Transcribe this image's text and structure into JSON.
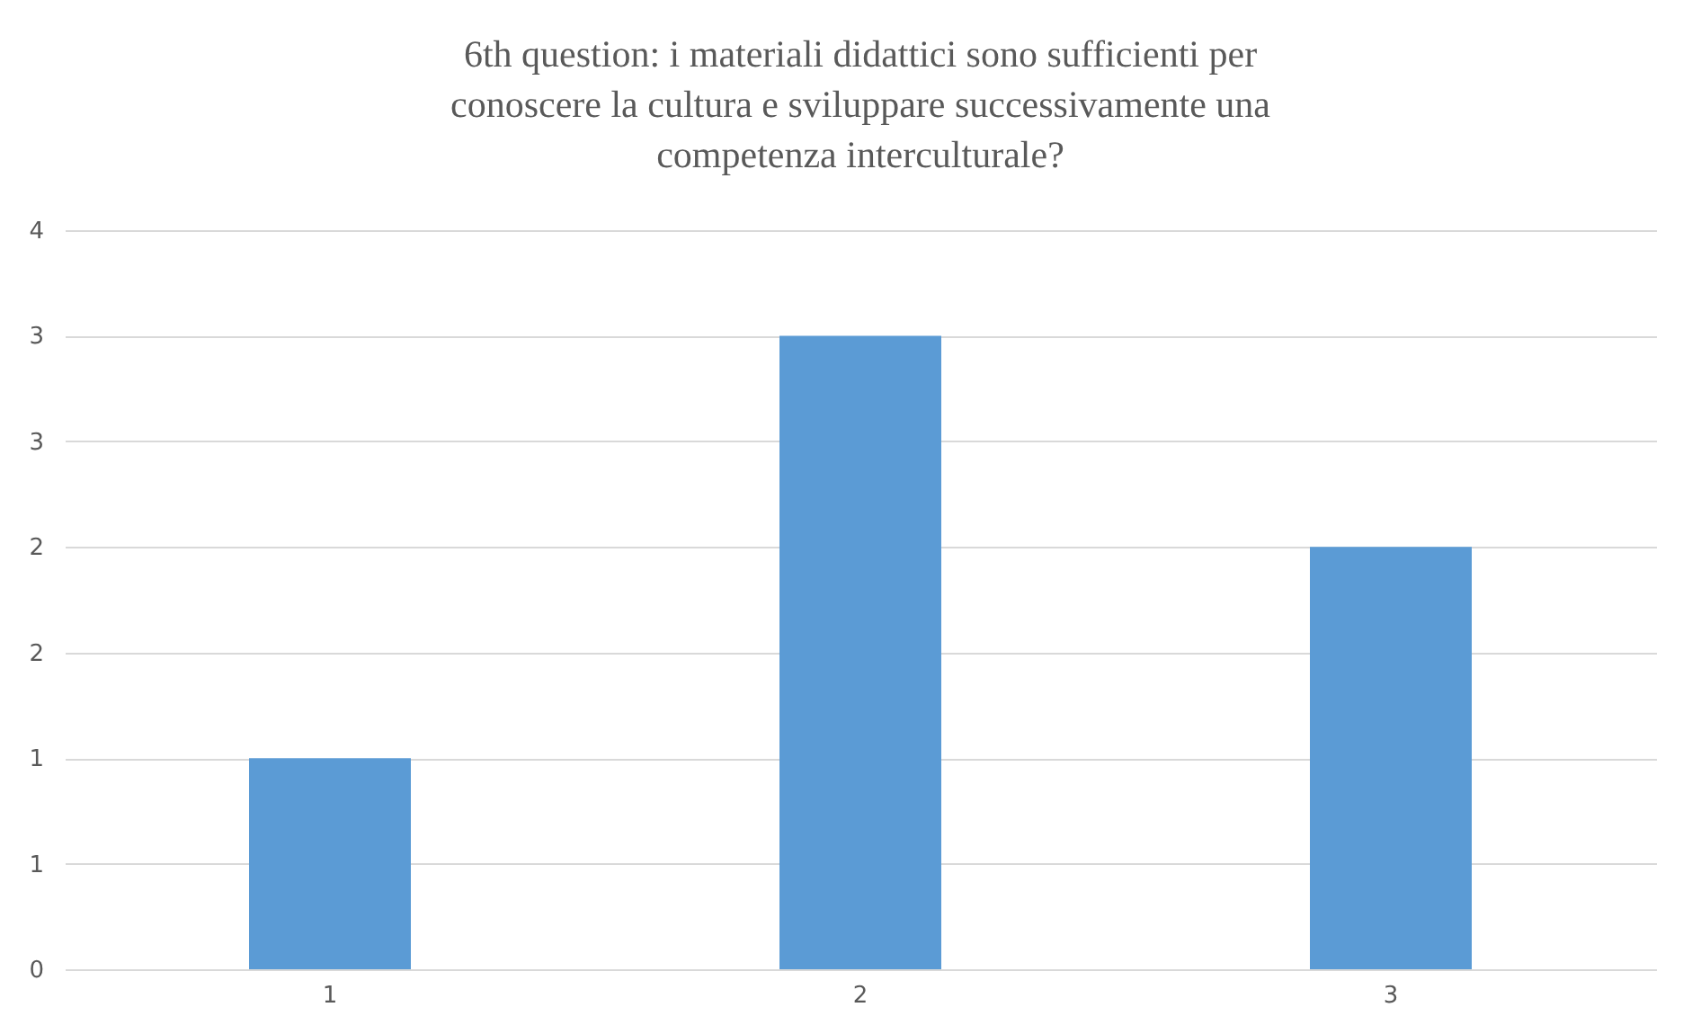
{
  "chart_data": {
    "type": "bar",
    "title": "6th question: i materiali didattici sono sufficienti per conoscere la cultura e sviluppare successivamente una competenza interculturale?",
    "categories": [
      "1",
      "2",
      "3"
    ],
    "values": [
      1,
      3,
      2
    ],
    "color": "#5b9bd5",
    "ylim": [
      0,
      3.5
    ],
    "yticks": [
      {
        "value": 0,
        "label": "0"
      },
      {
        "value": 0.5,
        "label": "1"
      },
      {
        "value": 1,
        "label": "1"
      },
      {
        "value": 1.5,
        "label": "2"
      },
      {
        "value": 2,
        "label": "2"
      },
      {
        "value": 2.5,
        "label": "3"
      },
      {
        "value": 3,
        "label": "3"
      },
      {
        "value": 3.5,
        "label": "4"
      }
    ],
    "grid": "y"
  }
}
